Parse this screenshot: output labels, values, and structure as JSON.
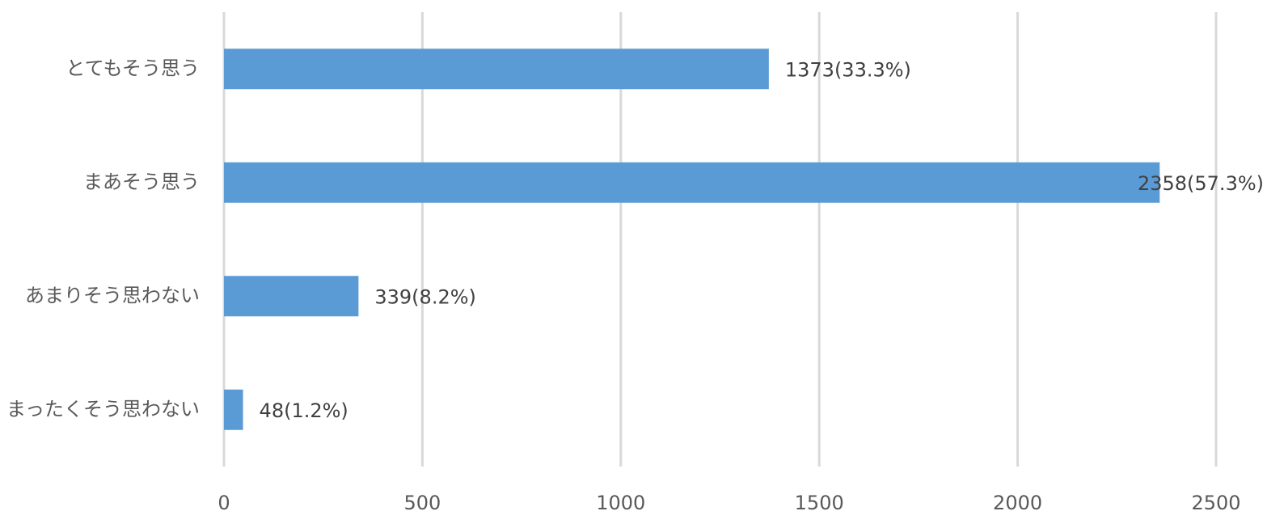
{
  "chart_data": {
    "type": "bar",
    "orientation": "horizontal",
    "categories": [
      "とてもそう思う",
      "まあそう思う",
      "あまりそう思わない",
      "まったくそう思わない"
    ],
    "values": [
      1373,
      2358,
      339,
      48
    ],
    "value_labels": [
      "1373(33.3%)",
      "2358(57.3%)",
      "339(8.2%)",
      "48(1.2%)"
    ],
    "color": "#5b9bd5",
    "xlim": [
      0,
      2500
    ],
    "xticks": [
      0,
      500,
      1000,
      1500,
      2000,
      2500
    ],
    "grid": true
  }
}
